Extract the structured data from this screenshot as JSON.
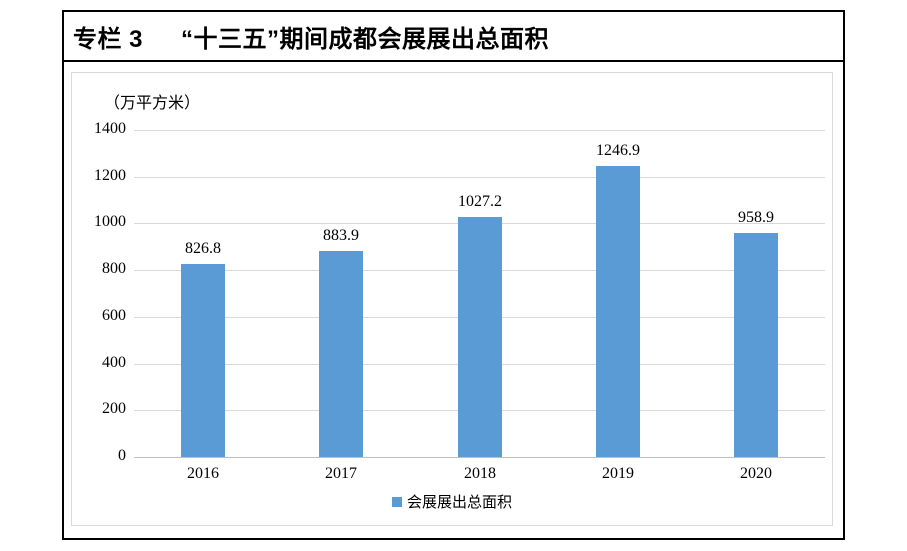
{
  "panel": {
    "title_prefix": "专栏 3",
    "title_main": "“十三五”期间成都会展展出总面积"
  },
  "chart_data": {
    "type": "bar",
    "title": "专栏 3 “十三五”期间成都会展展出总面积",
    "unit_label": "（万平方米）",
    "categories": [
      "2016",
      "2017",
      "2018",
      "2019",
      "2020"
    ],
    "series": [
      {
        "name": "会展展出总面积",
        "values": [
          826.8,
          883.9,
          1027.2,
          1246.9,
          958.9
        ]
      }
    ],
    "data_labels": [
      "826.8",
      "883.9",
      "1027.2",
      "1246.9",
      "958.9"
    ],
    "ylim": [
      0,
      1400
    ],
    "yticks": [
      0,
      200,
      400,
      600,
      800,
      1000,
      1200,
      1400
    ],
    "grid": true,
    "legend_position": "bottom",
    "bar_color": "#5b9bd5",
    "gridline_color": "#d9d9d9",
    "axis_line_color": "#bfbfbf",
    "panel_border_color": "#000000",
    "chart_border_color": "#d9d9d9"
  }
}
